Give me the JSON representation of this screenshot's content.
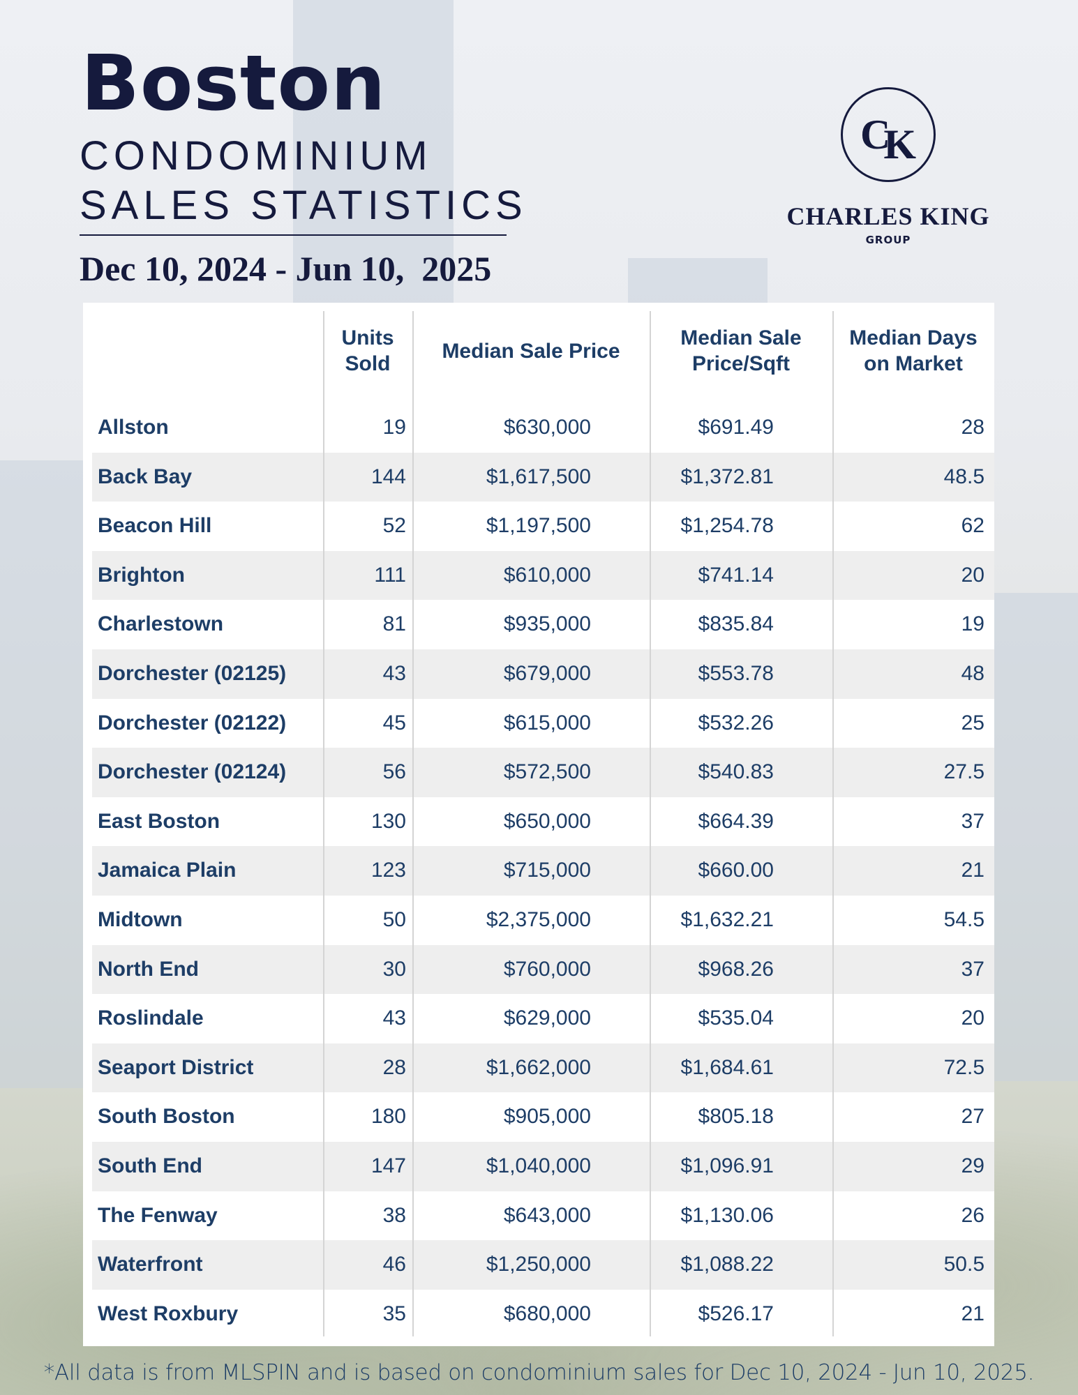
{
  "header": {
    "city": "Boston",
    "line1": "CONDOMINIUM",
    "line2": "SALES STATISTICS",
    "date_range": "Dec 10, 2024 - Jun 10,  2025"
  },
  "logo": {
    "monogram_c": "C",
    "monogram_k": "K",
    "name": "CHARLES KING",
    "group": "GROUP"
  },
  "table": {
    "columns": [
      "",
      "Units Sold",
      "Median Sale Price",
      "Median Sale Price/Sqft",
      "Median Days on Market"
    ],
    "rows": [
      [
        "Allston",
        "19",
        "$630,000",
        "$691.49",
        "28"
      ],
      [
        "Back Bay",
        "144",
        "$1,617,500",
        "$1,372.81",
        "48.5"
      ],
      [
        "Beacon Hill",
        "52",
        "$1,197,500",
        "$1,254.78",
        "62"
      ],
      [
        "Brighton",
        "111",
        "$610,000",
        "$741.14",
        "20"
      ],
      [
        "Charlestown",
        "81",
        "$935,000",
        "$835.84",
        "19"
      ],
      [
        "Dorchester (02125)",
        "43",
        "$679,000",
        "$553.78",
        "48"
      ],
      [
        "Dorchester (02122)",
        "45",
        "$615,000",
        "$532.26",
        "25"
      ],
      [
        "Dorchester (02124)",
        "56",
        "$572,500",
        "$540.83",
        "27.5"
      ],
      [
        "East Boston",
        "130",
        "$650,000",
        "$664.39",
        "37"
      ],
      [
        "Jamaica Plain",
        "123",
        "$715,000",
        "$660.00",
        "21"
      ],
      [
        "Midtown",
        "50",
        "$2,375,000",
        "$1,632.21",
        "54.5"
      ],
      [
        "North End",
        "30",
        "$760,000",
        "$968.26",
        "37"
      ],
      [
        "Roslindale",
        "43",
        "$629,000",
        "$535.04",
        "20"
      ],
      [
        "Seaport District",
        "28",
        "$1,662,000",
        "$1,684.61",
        "72.5"
      ],
      [
        "South Boston",
        "180",
        "$905,000",
        "$805.18",
        "27"
      ],
      [
        "South End",
        "147",
        "$1,040,000",
        "$1,096.91",
        "29"
      ],
      [
        "The Fenway",
        "38",
        "$643,000",
        "$1,130.06",
        "26"
      ],
      [
        "Waterfront",
        "46",
        "$1,250,000",
        "$1,088.22",
        "50.5"
      ],
      [
        "West Roxbury",
        "35",
        "$680,000",
        "$526.17",
        "21"
      ]
    ]
  },
  "footer": "*All data is from MLSPIN and is based on condominium sales for Dec 10, 2024 - Jun 10, 2025."
}
